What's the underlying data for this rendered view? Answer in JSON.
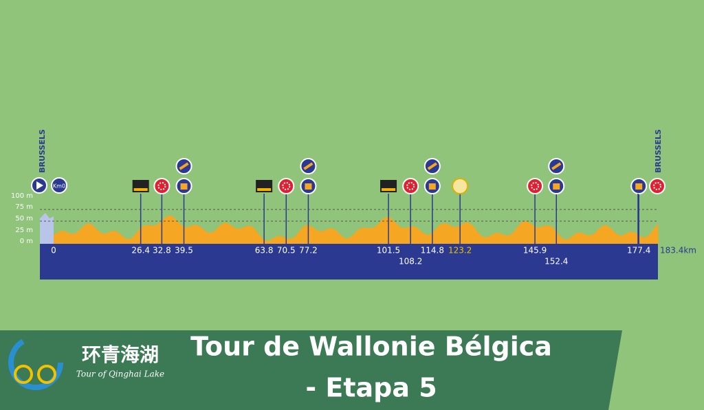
{
  "profile": {
    "start_town": "BRUSSELS",
    "finish_town": "BRUSSELS",
    "km0": "Km0",
    "altitude_labels": [
      "100 m",
      "75 m",
      "50 m",
      "25 m",
      "0 m"
    ],
    "markers": [
      0,
      26.4,
      32.8,
      39.5,
      63.8,
      70.5,
      77.2,
      101.5,
      108.2,
      114.8,
      123.2,
      145.9,
      152.4,
      177.4
    ],
    "finish": {
      "value": 183.4,
      "label": "183.4km"
    }
  },
  "banner": {
    "logo_chinese": "环青海湖",
    "logo_english": "Tour of Qinghai Lake",
    "title_line1": "Tour de Wallonie Bélgica",
    "title_line2": "- Etapa 5"
  }
}
